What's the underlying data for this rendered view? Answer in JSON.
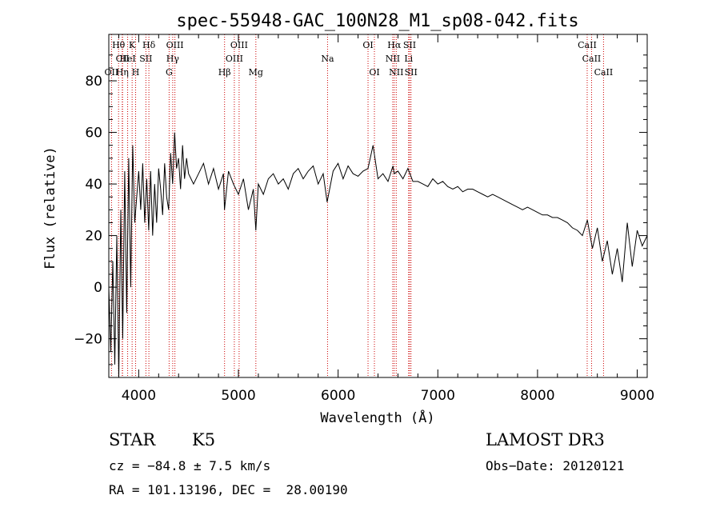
{
  "chart_data": {
    "type": "line",
    "title": "spec-55948-GAC_100N28_M1_sp08-042.fits",
    "xlabel": "Wavelength (Å)",
    "ylabel": "Flux (relative)",
    "xlim": [
      3700,
      9100
    ],
    "ylim": [
      -35,
      98
    ],
    "xticks": [
      4000,
      5000,
      6000,
      7000,
      8000,
      9000
    ],
    "yticks": [
      -20,
      0,
      20,
      40,
      60,
      80
    ],
    "grid": false,
    "series": [
      {
        "x": [
          3700,
          3720,
          3740,
          3760,
          3780,
          3800,
          3820,
          3840,
          3860,
          3880,
          3900,
          3920,
          3940,
          3960,
          3980,
          4000,
          4020,
          4040,
          4060,
          4080,
          4100,
          4120,
          4140,
          4160,
          4180,
          4200,
          4220,
          4240,
          4260,
          4280,
          4300,
          4320,
          4340,
          4360,
          4380,
          4400,
          4420,
          4440,
          4460,
          4480,
          4500,
          4550,
          4600,
          4650,
          4700,
          4750,
          4800,
          4850,
          4860,
          4900,
          4950,
          5000,
          5050,
          5100,
          5150,
          5175,
          5200,
          5250,
          5300,
          5350,
          5400,
          5450,
          5500,
          5550,
          5600,
          5650,
          5700,
          5750,
          5800,
          5850,
          5890,
          5950,
          6000,
          6050,
          6100,
          6150,
          6200,
          6250,
          6300,
          6350,
          6400,
          6450,
          6500,
          6550,
          6563,
          6600,
          6650,
          6700,
          6750,
          6800,
          6850,
          6900,
          6950,
          7000,
          7050,
          7100,
          7150,
          7200,
          7250,
          7300,
          7350,
          7400,
          7450,
          7500,
          7550,
          7600,
          7650,
          7700,
          7750,
          7800,
          7850,
          7900,
          7950,
          8000,
          8050,
          8100,
          8150,
          8200,
          8250,
          8300,
          8350,
          8400,
          8450,
          8500,
          8550,
          8600,
          8650,
          8700,
          8750,
          8800,
          8850,
          8900,
          8950,
          9000,
          9050,
          9100
        ],
        "y": [
          0,
          -25,
          10,
          -30,
          20,
          -35,
          30,
          -20,
          45,
          -10,
          50,
          0,
          55,
          25,
          35,
          45,
          30,
          48,
          25,
          42,
          22,
          45,
          20,
          40,
          25,
          46,
          38,
          28,
          48,
          35,
          30,
          52,
          40,
          60,
          46,
          50,
          38,
          55,
          42,
          50,
          44,
          40,
          44,
          48,
          40,
          46,
          38,
          44,
          30,
          45,
          40,
          36,
          42,
          30,
          38,
          22,
          40,
          36,
          42,
          44,
          40,
          42,
          38,
          44,
          46,
          42,
          45,
          47,
          40,
          44,
          33,
          45,
          48,
          42,
          47,
          44,
          43,
          45,
          46,
          55,
          42,
          44,
          41,
          47,
          44,
          45,
          42,
          46,
          41,
          41,
          40,
          39,
          42,
          40,
          41,
          39,
          38,
          39,
          37,
          38,
          38,
          37,
          36,
          35,
          36,
          35,
          34,
          33,
          32,
          31,
          30,
          31,
          30,
          29,
          28,
          28,
          27,
          27,
          26,
          25,
          23,
          22,
          20,
          26,
          15,
          23,
          10,
          18,
          5,
          15,
          2,
          25,
          8,
          22,
          16,
          20
        ]
      }
    ],
    "lines": [
      {
        "label": "Hθ",
        "x": 3798,
        "row": 1
      },
      {
        "label": "CII",
        "x": 3838,
        "row": 2
      },
      {
        "label": "OII",
        "x": 3727,
        "row": 3
      },
      {
        "label": "Hη",
        "x": 3835,
        "row": 3
      },
      {
        "label": "HeI",
        "x": 3889,
        "row": 2
      },
      {
        "label": "K",
        "x": 3934,
        "row": 1
      },
      {
        "label": "H",
        "x": 3969,
        "row": 3
      },
      {
        "label": "SII",
        "x": 4072,
        "row": 2
      },
      {
        "label": "Hδ",
        "x": 4102,
        "row": 1
      },
      {
        "label": "OIII",
        "x": 4363,
        "row": 1
      },
      {
        "label": "Hγ",
        "x": 4341,
        "row": 2
      },
      {
        "label": "G",
        "x": 4305,
        "row": 3
      },
      {
        "label": "Hβ",
        "x": 4861,
        "row": 3
      },
      {
        "label": "OIII",
        "x": 4959,
        "row": 2
      },
      {
        "label": "OIII",
        "x": 5007,
        "row": 1
      },
      {
        "label": "Mg",
        "x": 5175,
        "row": 3
      },
      {
        "label": "Na",
        "x": 5894,
        "row": 2
      },
      {
        "label": "OI",
        "x": 6300,
        "row": 1
      },
      {
        "label": "OI",
        "x": 6364,
        "row": 3
      },
      {
        "label": "Hα",
        "x": 6563,
        "row": 1
      },
      {
        "label": "NII",
        "x": 6548,
        "row": 2
      },
      {
        "label": "NII",
        "x": 6583,
        "row": 3
      },
      {
        "label": "SII",
        "x": 6717,
        "row": 1
      },
      {
        "label": "Li",
        "x": 6707,
        "row": 2
      },
      {
        "label": "SII",
        "x": 6731,
        "row": 3
      },
      {
        "label": "CaII",
        "x": 8498,
        "row": 1
      },
      {
        "label": "CaII",
        "x": 8542,
        "row": 2
      },
      {
        "label": "CaII",
        "x": 8662,
        "row": 3
      }
    ],
    "colors": {
      "spectrum": "#000000",
      "lines": "#cc0000",
      "axes": "#000000"
    }
  },
  "info": {
    "class": "STAR",
    "subclass": "K5",
    "survey": "LAMOST DR3",
    "cz": "cz = −84.8 ± 7.5 km/s",
    "obsdate": "Obs−Date: 20120121",
    "radec": "RA = 101.13196, DEC =  28.00190"
  }
}
